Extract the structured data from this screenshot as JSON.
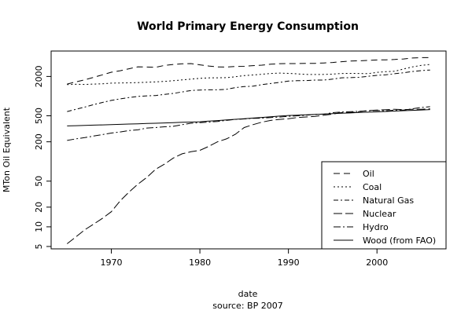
{
  "chart_data": {
    "type": "line",
    "title": "World Primary Energy Consumption",
    "xlabel": "date",
    "ylabel": "MTon Oil Equivalent",
    "source_note": "source: BP 2007",
    "x_ticks": [
      1970,
      1980,
      1990,
      2000
    ],
    "y_ticks": [
      5,
      10,
      20,
      50,
      200,
      500,
      2000
    ],
    "xlim": [
      1963.2,
      2007.8
    ],
    "ylim": [
      4.6,
      4900
    ],
    "y_scale": "log",
    "legend_position": "bottom-right",
    "x": [
      1965,
      1966,
      1967,
      1968,
      1969,
      1970,
      1971,
      1972,
      1973,
      1974,
      1975,
      1976,
      1977,
      1978,
      1979,
      1980,
      1981,
      1982,
      1983,
      1984,
      1985,
      1986,
      1987,
      1988,
      1989,
      1990,
      1991,
      1992,
      1993,
      1994,
      1995,
      1996,
      1997,
      1998,
      1999,
      2000,
      2001,
      2002,
      2003,
      2004,
      2005,
      2006
    ],
    "series": [
      {
        "name": "Oil",
        "dash": "8,5",
        "values": [
          1530,
          1650,
          1780,
          1940,
          2120,
          2320,
          2450,
          2620,
          2810,
          2790,
          2760,
          2950,
          3050,
          3120,
          3150,
          3010,
          2890,
          2800,
          2790,
          2840,
          2860,
          2930,
          2980,
          3080,
          3140,
          3150,
          3150,
          3170,
          3170,
          3220,
          3270,
          3360,
          3450,
          3470,
          3530,
          3570,
          3590,
          3630,
          3710,
          3830,
          3880,
          3900
        ]
      },
      {
        "name": "Coal",
        "dash": "2,3",
        "values": [
          1500,
          1520,
          1510,
          1530,
          1540,
          1580,
          1590,
          1600,
          1610,
          1630,
          1650,
          1680,
          1720,
          1770,
          1820,
          1870,
          1900,
          1910,
          1920,
          1980,
          2060,
          2110,
          2160,
          2220,
          2250,
          2230,
          2190,
          2150,
          2140,
          2150,
          2170,
          2220,
          2230,
          2220,
          2210,
          2310,
          2370,
          2400,
          2600,
          2800,
          2950,
          3050
        ]
      },
      {
        "name": "Natural Gas",
        "dash": "6,3,2,3",
        "values": [
          580,
          630,
          680,
          740,
          800,
          860,
          910,
          950,
          990,
          1010,
          1020,
          1060,
          1100,
          1160,
          1220,
          1240,
          1250,
          1250,
          1270,
          1350,
          1400,
          1420,
          1500,
          1560,
          1620,
          1700,
          1720,
          1730,
          1760,
          1760,
          1820,
          1910,
          1920,
          1940,
          2010,
          2080,
          2120,
          2200,
          2280,
          2380,
          2460,
          2510
        ]
      },
      {
        "name": "Nuclear",
        "dash": "11,4",
        "values": [
          5.5,
          7,
          9,
          11,
          13.5,
          17,
          25,
          34,
          45,
          57,
          76,
          91,
          113,
          131,
          141,
          148,
          170,
          200,
          222,
          260,
          330,
          366,
          400,
          425,
          440,
          450,
          470,
          480,
          490,
          510,
          530,
          560,
          560,
          580,
          600,
          610,
          620,
          630,
          620,
          630,
          630,
          640
        ]
      },
      {
        "name": "Hydro",
        "dash": "9,3,2,3",
        "values": [
          210,
          222,
          232,
          245,
          258,
          272,
          283,
          297,
          305,
          325,
          330,
          340,
          345,
          366,
          385,
          392,
          400,
          410,
          425,
          440,
          448,
          456,
          460,
          470,
          479,
          490,
          500,
          510,
          525,
          530,
          558,
          571,
          578,
          585,
          595,
          602,
          596,
          610,
          610,
          640,
          670,
          690
        ]
      },
      {
        "name": "Wood (from FAO)",
        "dash": "",
        "values": [
          350,
          353,
          356,
          360,
          363,
          367,
          370,
          374,
          377,
          381,
          385,
          389,
          393,
          397,
          401,
          405,
          414,
          423,
          433,
          442,
          452,
          462,
          472,
          483,
          494,
          505,
          512,
          519,
          525,
          532,
          539,
          546,
          553,
          561,
          568,
          575,
          583,
          590,
          598,
          606,
          614,
          622
        ]
      }
    ]
  }
}
